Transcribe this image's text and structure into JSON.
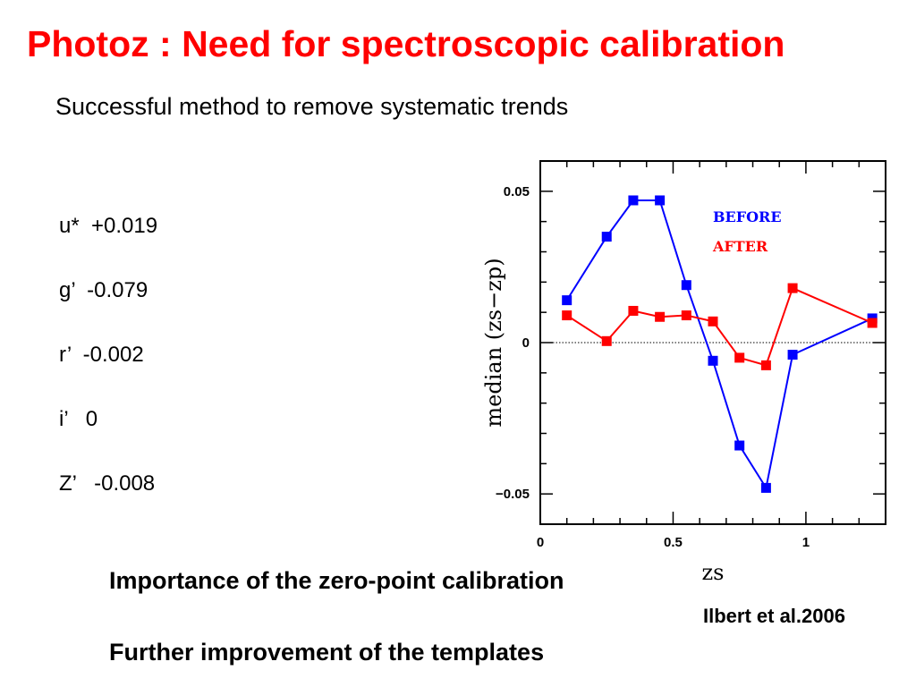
{
  "slide": {
    "title": "Photoz : Need for spectroscopic calibration",
    "subtitle": "Successful method to remove systematic trends",
    "offsets": [
      "u*  +0.019",
      "g’  -0.079",
      "r’  -0.002",
      "i’   0",
      "Z’   -0.008"
    ],
    "points": [
      "Importance of the zero-point calibration",
      "Further improvement of the templates"
    ],
    "citation": "Ilbert et al.2006"
  },
  "colors": {
    "title": "#ff0000",
    "before": "#0000ff",
    "after": "#ff0000"
  },
  "chart_data": {
    "type": "line",
    "xlabel": "zs",
    "ylabel": "median (zs−zp)",
    "xlim": [
      0,
      1.3
    ],
    "ylim": [
      -0.06,
      0.06
    ],
    "x_ticks": [
      "0",
      "0.5",
      "1"
    ],
    "y_ticks": [
      "0.05",
      "0",
      "−0.05"
    ],
    "zero_line": "dotted",
    "legend_position": "top-right",
    "series": [
      {
        "name": "BEFORE",
        "color": "#0000ff",
        "x": [
          0.1,
          0.25,
          0.35,
          0.45,
          0.55,
          0.65,
          0.75,
          0.85,
          0.95,
          1.25
        ],
        "y": [
          0.014,
          0.035,
          0.047,
          0.047,
          0.019,
          -0.006,
          -0.034,
          -0.048,
          -0.004,
          0.008
        ]
      },
      {
        "name": "AFTER",
        "color": "#ff0000",
        "x": [
          0.1,
          0.25,
          0.35,
          0.45,
          0.55,
          0.65,
          0.75,
          0.85,
          0.95,
          1.25
        ],
        "y": [
          0.009,
          0.0005,
          0.0105,
          0.0085,
          0.009,
          0.007,
          -0.005,
          -0.0075,
          0.018,
          0.0065
        ]
      }
    ]
  }
}
